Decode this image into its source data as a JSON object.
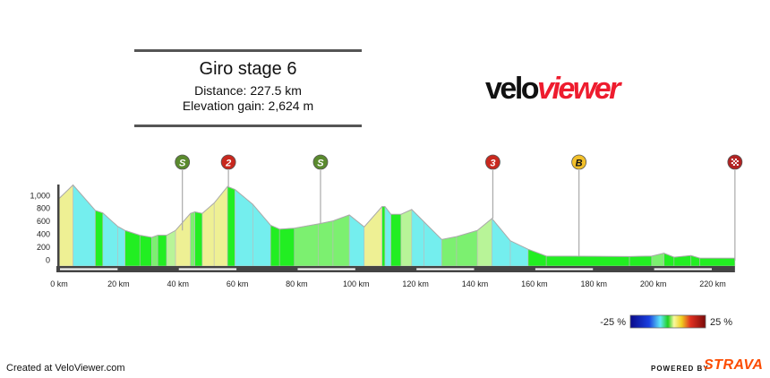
{
  "header": {
    "title": "Giro stage 6",
    "distance": "Distance: 227.5 km",
    "elevation_gain": "Elevation gain: 2,624 m"
  },
  "logo": {
    "part1": "velo",
    "part2": "viewer",
    "colors": {
      "velo": "#111111",
      "viewer": "#ee1c2e"
    }
  },
  "chart_data": {
    "type": "area",
    "xlabel": "",
    "ylabel": "",
    "x_unit": "km",
    "xlim": [
      0,
      227.5
    ],
    "ylim": [
      0,
      1150
    ],
    "x_ticks": [
      "0 km",
      "20 km",
      "40 km",
      "60 km",
      "80 km",
      "100 km",
      "120 km",
      "140 km",
      "160 km",
      "180 km",
      "200 km",
      "220 km"
    ],
    "x_tick_values": [
      0,
      20,
      40,
      60,
      80,
      100,
      120,
      140,
      160,
      180,
      200,
      220
    ],
    "y_ticks": [
      "0",
      "200",
      "400",
      "600",
      "800",
      "1,000"
    ],
    "y_tick_values": [
      0,
      200,
      400,
      600,
      800,
      1000
    ],
    "profile": [
      [
        0,
        940
      ],
      [
        4.7,
        1150
      ],
      [
        12.2,
        755
      ],
      [
        14.7,
        717
      ],
      [
        19.7,
        509
      ],
      [
        22.2,
        445
      ],
      [
        27.2,
        370
      ],
      [
        31.2,
        338
      ],
      [
        33.2,
        370
      ],
      [
        36.2,
        370
      ],
      [
        39.2,
        445
      ],
      [
        44.2,
        709
      ],
      [
        45.7,
        733
      ],
      [
        48.2,
        709
      ],
      [
        52.2,
        870
      ],
      [
        56.7,
        1126
      ],
      [
        59.2,
        1080
      ],
      [
        65.2,
        850
      ],
      [
        71.2,
        525
      ],
      [
        74.2,
        465
      ],
      [
        79.2,
        480
      ],
      [
        87.2,
        546
      ],
      [
        92.2,
        593
      ],
      [
        97.7,
        685
      ],
      [
        102.7,
        500
      ],
      [
        108.7,
        815
      ],
      [
        109.7,
        815
      ],
      [
        111.7,
        695
      ],
      [
        115.1,
        695
      ],
      [
        118.7,
        770
      ],
      [
        122.8,
        580
      ],
      [
        128.8,
        305
      ],
      [
        133.8,
        350
      ],
      [
        140.8,
        445
      ],
      [
        145.7,
        630
      ],
      [
        151.9,
        285
      ],
      [
        157.9,
        153
      ],
      [
        164,
        48
      ],
      [
        192,
        40
      ],
      [
        199.5,
        48
      ],
      [
        203.6,
        92
      ],
      [
        207,
        30
      ],
      [
        212.7,
        56
      ],
      [
        215.7,
        15
      ],
      [
        227.5,
        15
      ]
    ],
    "markers": [
      {
        "km": 41.5,
        "label": "S",
        "type": "sprint",
        "color": "#5a8a2e"
      },
      {
        "km": 57,
        "label": "2",
        "type": "climb-cat-2",
        "color": "#c8281e"
      },
      {
        "km": 88,
        "label": "S",
        "type": "sprint",
        "color": "#5a8a2e"
      },
      {
        "km": 146,
        "label": "3",
        "type": "climb-cat-3",
        "color": "#c8281e"
      },
      {
        "km": 175,
        "label": "B",
        "type": "bonus",
        "color": "#f2c02a"
      },
      {
        "km": 227.5,
        "label": "",
        "type": "finish-flag",
        "color": "#b22222"
      }
    ],
    "gradient_legend": {
      "min_label": "-25 %",
      "max_label": "25 %",
      "min": -25,
      "max": 25
    }
  },
  "footer": {
    "created": "Created at VeloViewer.com",
    "powered_by": "POWERED BY",
    "strava": "STRAVA"
  }
}
